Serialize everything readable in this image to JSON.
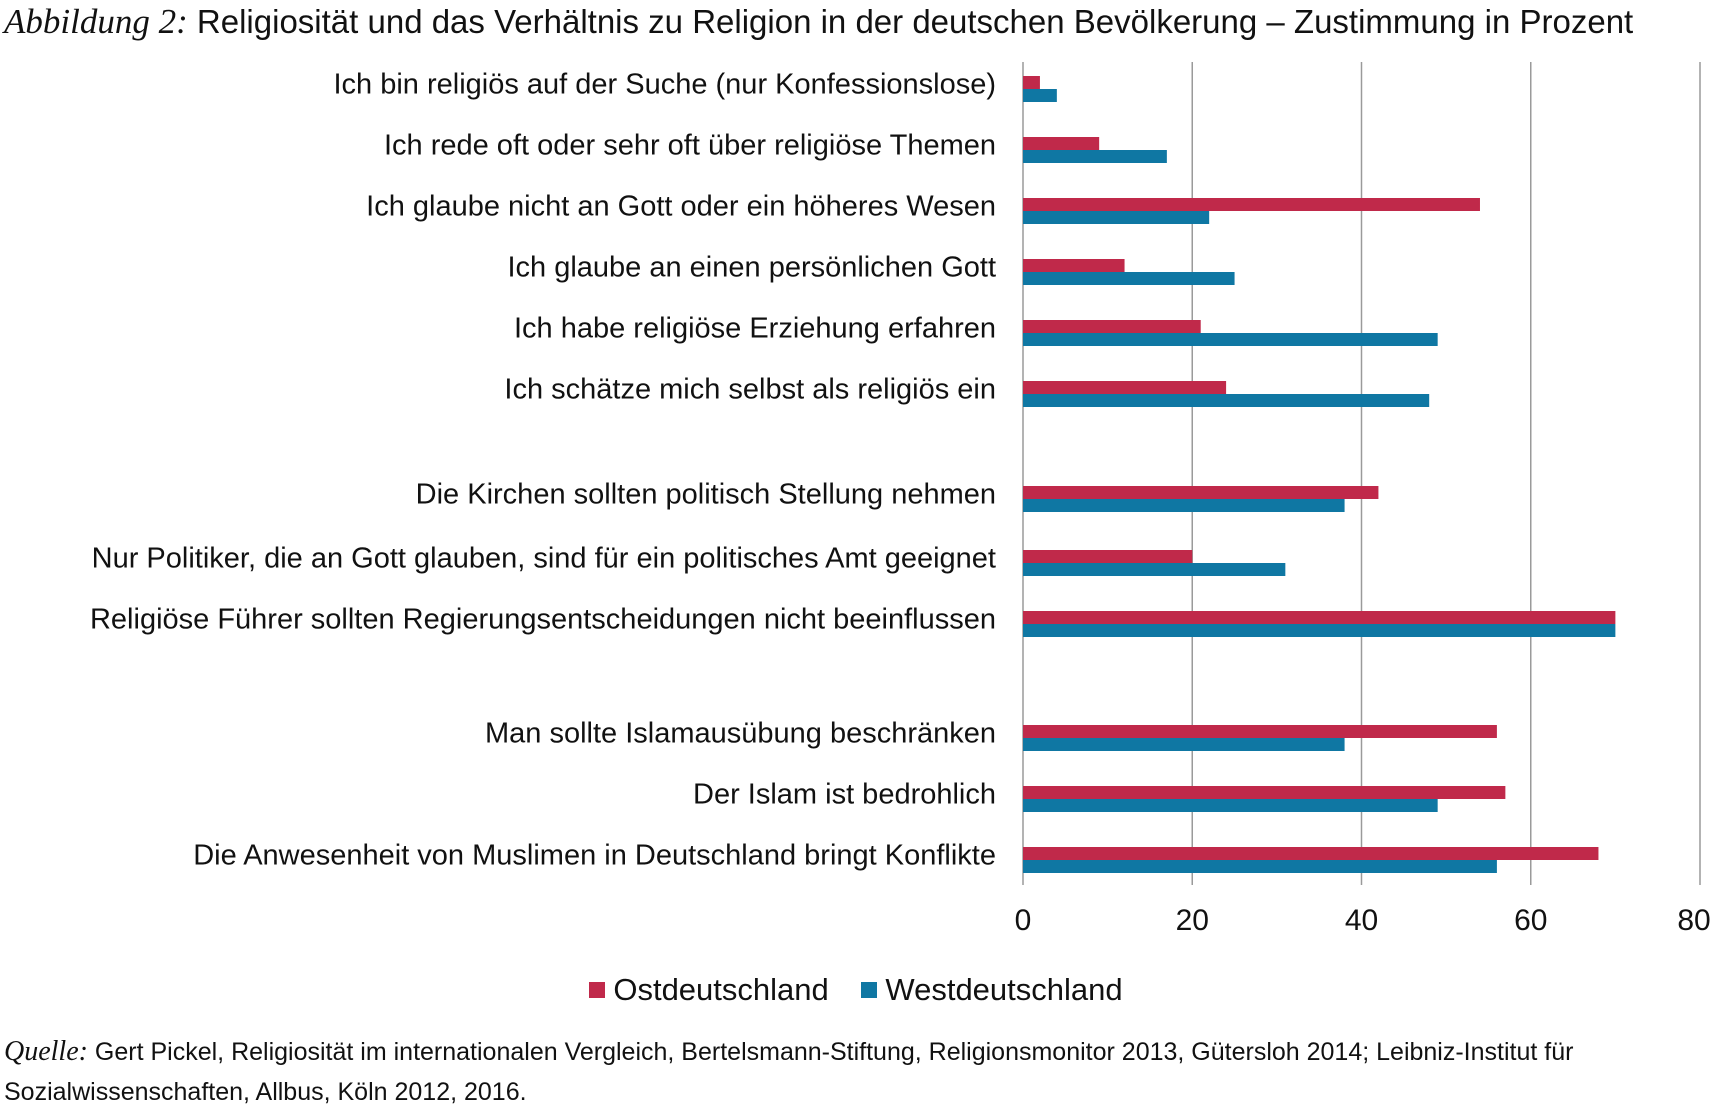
{
  "figure": {
    "label": "Abbildung 2:",
    "title": "Religiosität und das Verhältnis zu Religion in der deutschen Bevölkerung – Zustimmung in Prozent"
  },
  "source": {
    "label": "Quelle:",
    "text": "Gert Pickel, Religiosität im internationalen Vergleich, Bertelsmann-Stiftung, Religionsmonitor 2013, Gütersloh 2014; Leibniz-Institut für Sozialwissenschaften, Allbus, Köln 2012, 2016."
  },
  "colors": {
    "ost": "#c0294a",
    "west": "#0f77a3",
    "grid": "#9a9a9a"
  },
  "chart_data": {
    "type": "bar",
    "orientation": "horizontal",
    "categories": [
      "Ich bin religiös auf der Suche (nur Konfessionslose)",
      "Ich rede oft oder sehr oft über religiöse Themen",
      "Ich glaube nicht an Gott oder ein höheres Wesen",
      "Ich glaube an einen persönlichen Gott",
      "Ich habe religiöse Erziehung erfahren",
      "Ich schätze mich selbst als religiös ein",
      "Die Kirchen sollten politisch Stellung nehmen",
      "Nur Politiker, die an Gott glauben, sind für ein politisches Amt geeignet",
      "Religiöse Führer sollten Regierungsentscheidungen nicht beeinflussen",
      "Man sollte Islamausübung beschränken",
      "Der Islam ist bedrohlich",
      "Die Anwesenheit von Muslimen in Deutschland bringt Konflikte"
    ],
    "groups": [
      [
        0,
        1,
        2,
        3,
        4,
        5
      ],
      [
        6,
        7,
        8
      ],
      [
        9,
        10,
        11
      ]
    ],
    "series": [
      {
        "name": "Ostdeutschland",
        "values": [
          2,
          9,
          54,
          12,
          21,
          24,
          42,
          20,
          70,
          56,
          57,
          68
        ]
      },
      {
        "name": "Westdeutschland",
        "values": [
          4,
          17,
          22,
          25,
          49,
          48,
          38,
          31,
          70,
          38,
          49,
          56
        ]
      }
    ],
    "xlim": [
      0,
      80
    ],
    "xticks": [
      "0",
      "20",
      "40",
      "60",
      "80"
    ],
    "grid": true,
    "legend_position": "bottom"
  }
}
